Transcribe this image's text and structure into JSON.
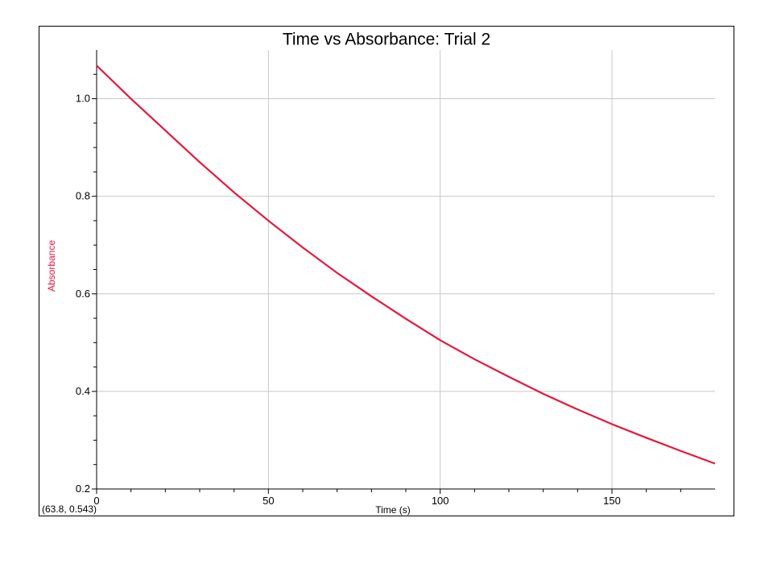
{
  "chart_data": {
    "type": "line",
    "title": "Time vs Absorbance:  Trial 2",
    "x_label": "Time (s)",
    "y_label": "Absorbance",
    "annotation": "(63.8, 0.543)",
    "x": [
      0,
      10,
      20,
      30,
      40,
      50,
      60,
      70,
      80,
      90,
      100,
      110,
      120,
      130,
      140,
      150,
      160,
      170,
      180
    ],
    "values": [
      1.068,
      1.0,
      0.935,
      0.87,
      0.808,
      0.75,
      0.695,
      0.643,
      0.595,
      0.549,
      0.505,
      0.466,
      0.43,
      0.395,
      0.363,
      0.333,
      0.305,
      0.278,
      0.252
    ],
    "color": "#e8163c",
    "xlim": [
      0,
      180
    ],
    "ylim": [
      0.2,
      1.1
    ],
    "xticks": [
      0,
      50,
      100,
      150
    ],
    "yticks": [
      0.2,
      0.4,
      0.6,
      0.8,
      {
        "value": 1.0,
        "label": "1.0"
      }
    ],
    "xminorticks": [
      10,
      20,
      30,
      40,
      60,
      70,
      80,
      90,
      110,
      120,
      130,
      140,
      160,
      170
    ],
    "yminorticks": [
      0.25,
      0.3,
      0.35,
      0.45,
      0.5,
      0.55,
      0.65,
      0.7,
      0.75,
      0.85,
      0.9,
      0.95,
      1.05
    ],
    "grid": true
  }
}
